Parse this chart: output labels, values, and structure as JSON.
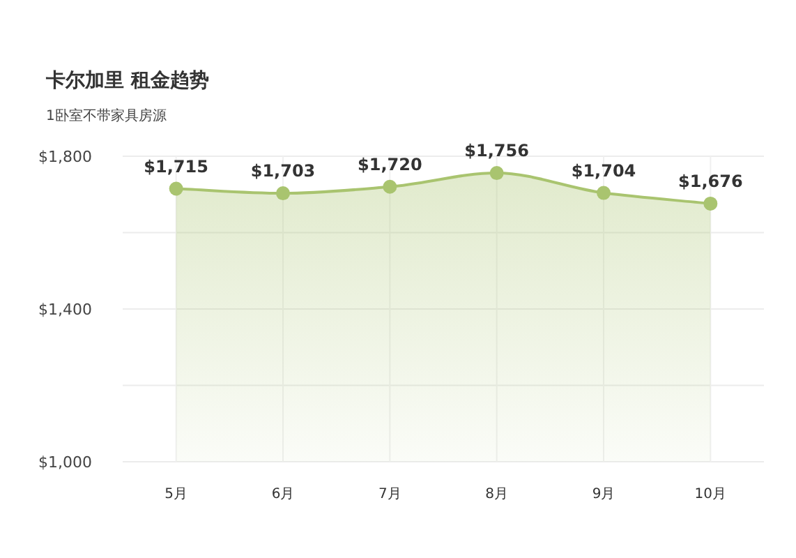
{
  "chart_data": {
    "type": "area",
    "title": "卡尔加里 租金趋势",
    "subtitle": "1卧室不带家具房源",
    "categories": [
      "5月",
      "6月",
      "7月",
      "8月",
      "9月",
      "10月"
    ],
    "series": [
      {
        "color": "#a9c46f",
        "values": [
          1715,
          1703,
          1720,
          1756,
          1704,
          1676
        ]
      }
    ],
    "ylim": [
      1000,
      1800
    ],
    "yticks": [
      {
        "value": 1000,
        "label": "$1,000"
      },
      {
        "value": 1200,
        "label": null
      },
      {
        "value": 1400,
        "label": "$1,400"
      },
      {
        "value": 1600,
        "label": null
      },
      {
        "value": 1800,
        "label": "$1,800"
      }
    ],
    "value_labels": [
      "$1,715",
      "$1,703",
      "$1,720",
      "$1,756",
      "$1,704",
      "$1,676"
    ],
    "grid": true,
    "marker": "circle"
  }
}
